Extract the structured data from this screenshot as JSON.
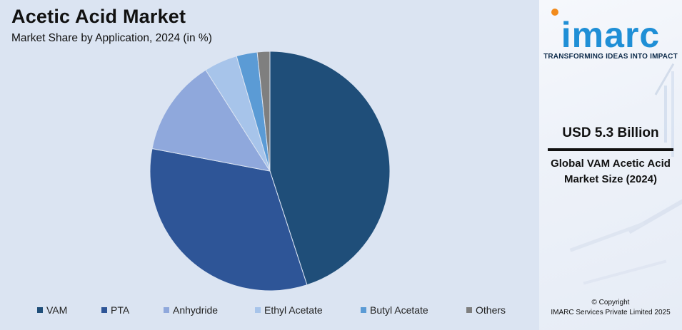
{
  "header": {
    "title": "Acetic Acid Market",
    "subtitle": "Market Share by Application, 2024 (in %)"
  },
  "chart_data": {
    "type": "pie",
    "title": "Acetic Acid Market",
    "subtitle": "Market Share by Application, 2024 (in %)",
    "categories": [
      "VAM",
      "PTA",
      "Anhydride",
      "Ethyl Acetate",
      "Butyl Acetate",
      "Others"
    ],
    "values": [
      45,
      33,
      13,
      4.5,
      2.8,
      1.7
    ],
    "colors": [
      "#1f4e79",
      "#2e5597",
      "#8fa8dc",
      "#a7c4ea",
      "#5b9bd5",
      "#7f7f7f"
    ],
    "legend_position": "bottom",
    "start_angle_deg": 0,
    "direction": "clockwise"
  },
  "legend": {
    "items": [
      "VAM",
      "PTA",
      "Anhydride",
      "Ethyl Acetate",
      "Butyl Acetate",
      "Others"
    ]
  },
  "sidebar": {
    "logo_text": "imarc",
    "tagline": "TRANSFORMING IDEAS INTO IMPACT",
    "stat_value": "USD 5.3 Billion",
    "stat_label": "Global VAM Acetic Acid Market Size (2024)",
    "copyright_line1": "© Copyright",
    "copyright_line2": "IMARC Services Private Limited 2025",
    "accent_color": "#1f8fd6"
  }
}
